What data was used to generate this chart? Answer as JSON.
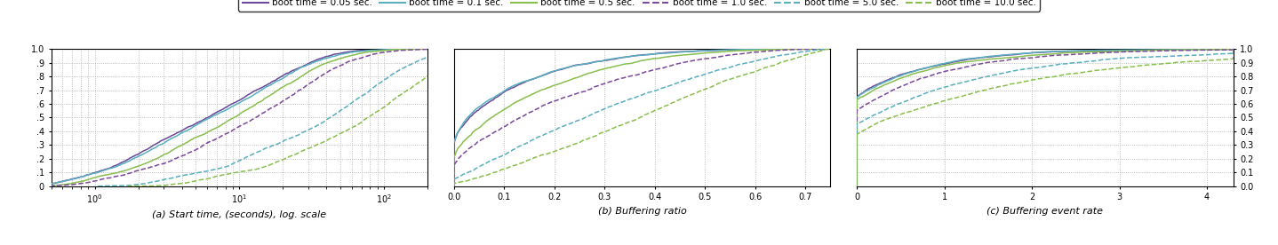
{
  "legend_entries": [
    {
      "label": "boot time = 0.05 sec.",
      "color": "#6b4a9b",
      "linestyle": "solid"
    },
    {
      "label": "boot time = 0.1 sec.",
      "color": "#5aafbf",
      "linestyle": "solid"
    },
    {
      "label": "boot time = 0.5 sec.",
      "color": "#8abf50",
      "linestyle": "solid"
    },
    {
      "label": "boot time = 1.0 sec.",
      "color": "#7b4a9b",
      "linestyle": "dashed"
    },
    {
      "label": "boot time = 5.0 sec.",
      "color": "#5aafbf",
      "linestyle": "dashed"
    },
    {
      "label": "boot time = 10.0 sec.",
      "color": "#8abf50",
      "linestyle": "dashed"
    }
  ],
  "subplot_titles": [
    "(a) Start time, (seconds), log. scale",
    "(b) Buffering ratio",
    "(c) Buffering event rate"
  ],
  "subplot_a": {
    "xlim": [
      0.5,
      200
    ],
    "ylim": [
      0.0,
      1.0
    ],
    "yticks": [
      0.0,
      0.1,
      0.2,
      0.3,
      0.4,
      0.5,
      0.6,
      0.7,
      0.8,
      0.9,
      1.0
    ],
    "ytick_labels": [
      "0",
      ".1",
      ".2",
      ".3",
      ".4",
      ".5",
      ".6",
      ".7",
      ".8",
      ".9",
      "1.0"
    ]
  },
  "subplot_b": {
    "xlim": [
      0.0,
      0.75
    ],
    "ylim": [
      0.0,
      1.0
    ],
    "xticks": [
      0.0,
      0.1,
      0.2,
      0.3,
      0.4,
      0.5,
      0.6,
      0.7
    ],
    "xtick_labels": [
      "0.0",
      "0.1",
      "0.2",
      "0.3",
      "0.4",
      "0.5",
      "0.6",
      "0.7"
    ]
  },
  "subplot_c": {
    "xlim": [
      0.0,
      4.3
    ],
    "ylim": [
      0.0,
      1.0
    ],
    "xticks": [
      0,
      1,
      2,
      3,
      4
    ],
    "yticks": [
      0.0,
      0.1,
      0.2,
      0.3,
      0.4,
      0.5,
      0.6,
      0.7,
      0.8,
      0.9,
      1.0
    ],
    "ytick_labels": [
      "0.0",
      "0.1",
      "0.2",
      "0.3",
      "0.4",
      "0.5",
      "0.6",
      "0.7",
      "0.8",
      "0.9",
      "1.0"
    ]
  },
  "background_color": "#ffffff",
  "grid_color": "#aaaaaa"
}
